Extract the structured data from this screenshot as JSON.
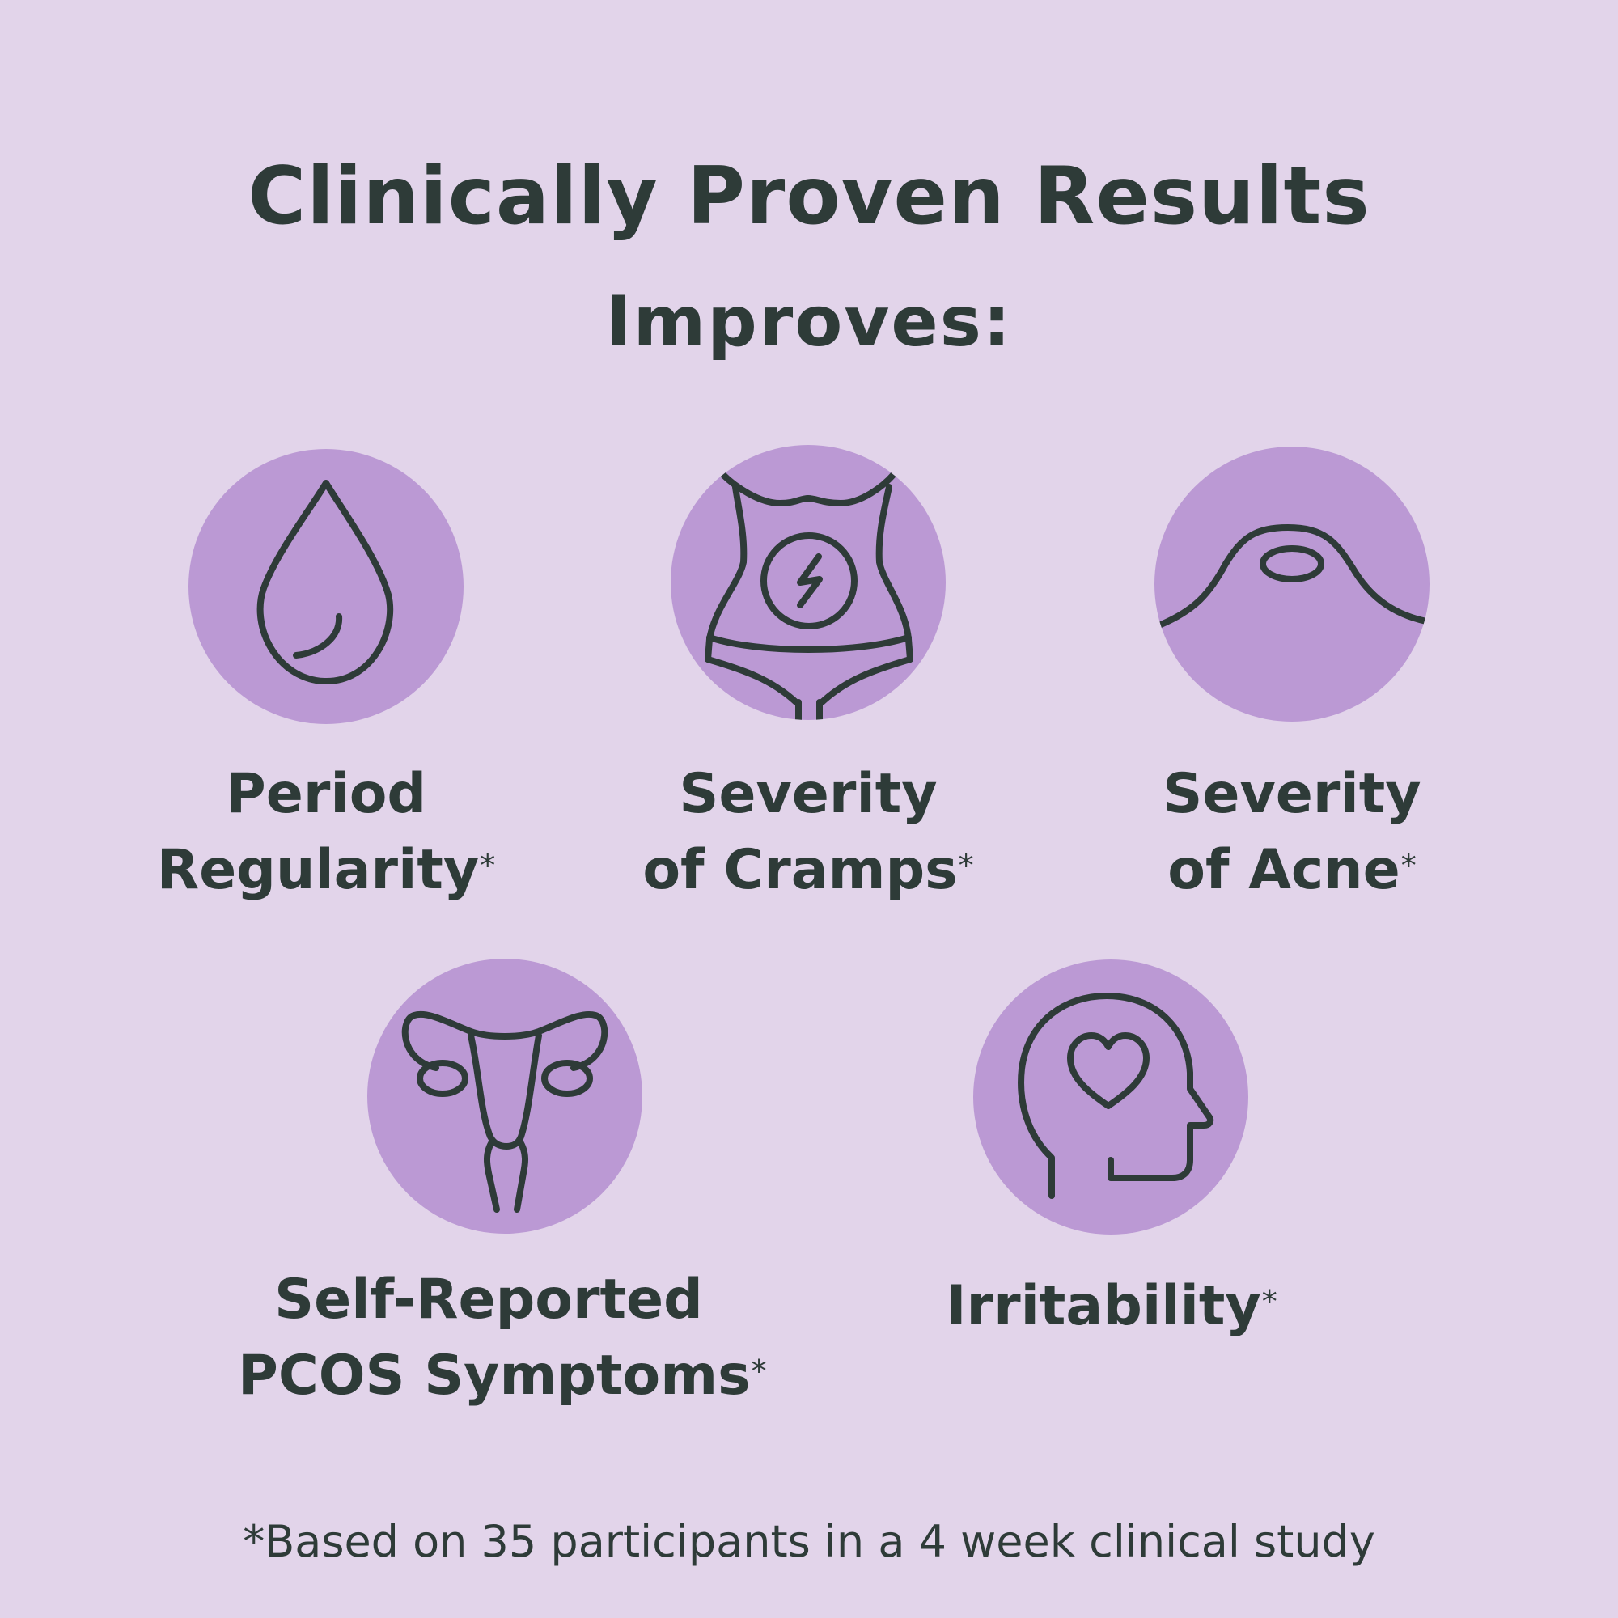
{
  "heading": {
    "title": "Clinically Proven Results",
    "subtitle": "Improves:"
  },
  "benefits": [
    {
      "icon": "blood-drop-icon",
      "line1": "Period",
      "line2": "Regularity",
      "mark": "*"
    },
    {
      "icon": "abdomen-cramp-icon",
      "line1": "Severity",
      "line2": "of Cramps",
      "mark": "*"
    },
    {
      "icon": "skin-bump-icon",
      "line1": "Severity",
      "line2": "of Acne",
      "mark": "*"
    },
    {
      "icon": "uterus-icon",
      "line1": "Self-Reported",
      "line2": "PCOS Symptoms",
      "mark": "*"
    },
    {
      "icon": "head-heart-icon",
      "line1": "Irritability",
      "mark": "*"
    }
  ],
  "footnote": "*Based on 35 participants in a 4 week clinical study",
  "colors": {
    "background": "#e2d4ea",
    "circle": "#bb99d4",
    "text": "#2e3b38"
  }
}
